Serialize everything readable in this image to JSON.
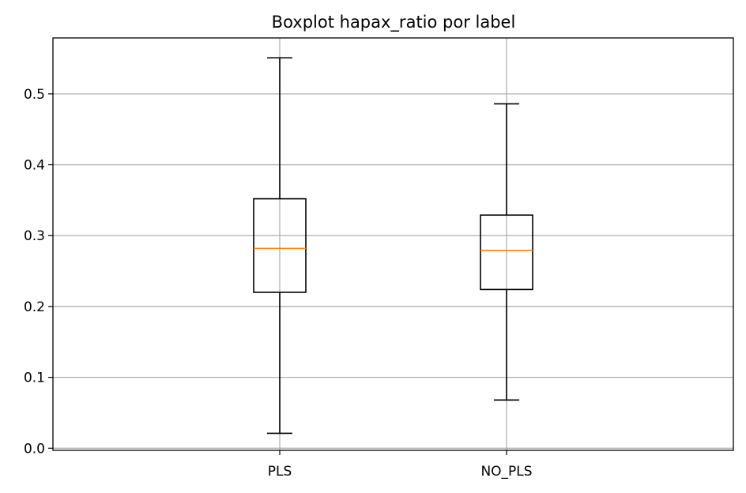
{
  "chart_data": {
    "type": "box",
    "title": "Boxplot hapax_ratio por label",
    "xlabel": "",
    "ylabel": "",
    "categories": [
      "PLS",
      "NO_PLS"
    ],
    "boxes": [
      {
        "category": "PLS",
        "whisker_low": 0.021,
        "q1": 0.22,
        "median": 0.282,
        "q3": 0.352,
        "whisker_high": 0.551
      },
      {
        "category": "NO_PLS",
        "whisker_low": 0.068,
        "q1": 0.224,
        "median": 0.279,
        "q3": 0.329,
        "whisker_high": 0.486
      }
    ],
    "ylim": [
      -0.003,
      0.579
    ],
    "yticks": [
      0.0,
      0.1,
      0.2,
      0.3,
      0.4,
      0.5
    ],
    "ytick_labels": [
      "0.0",
      "0.1",
      "0.2",
      "0.3",
      "0.4",
      "0.5"
    ],
    "grid": true,
    "colors": {
      "box": "#000000",
      "median": "#ff7f0e",
      "grid": "#b0b0b0"
    }
  }
}
